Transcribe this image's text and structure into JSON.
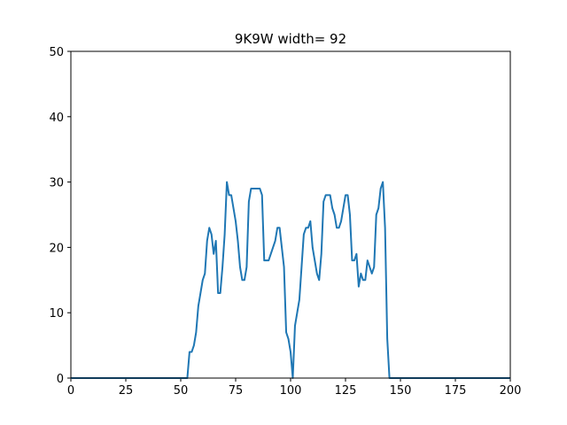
{
  "chart_data": {
    "type": "line",
    "title": "9K9W width= 92",
    "xlabel": "",
    "ylabel": "",
    "xlim": [
      0,
      200
    ],
    "ylim": [
      0,
      50
    ],
    "xticks": [
      "0",
      "25",
      "50",
      "75",
      "100",
      "125",
      "150",
      "175",
      "200"
    ],
    "yticks": [
      "0",
      "10",
      "20",
      "30",
      "40",
      "50"
    ],
    "grid": false,
    "line_color": "#1f77b4",
    "series": [
      {
        "x": [
          0,
          53,
          54,
          55,
          56,
          57,
          58,
          59,
          60,
          61,
          62,
          63,
          64,
          65,
          66,
          67,
          68,
          69,
          70,
          71,
          72,
          73,
          74,
          75,
          76,
          77,
          78,
          79,
          80,
          81,
          82,
          83,
          84,
          85,
          86,
          87,
          88,
          89,
          90,
          91,
          92,
          93,
          94,
          95,
          96,
          97,
          98,
          99,
          100,
          101,
          102,
          103,
          104,
          105,
          106,
          107,
          108,
          109,
          110,
          111,
          112,
          113,
          114,
          115,
          116,
          117,
          118,
          119,
          120,
          121,
          122,
          123,
          124,
          125,
          126,
          127,
          128,
          129,
          130,
          131,
          132,
          133,
          134,
          135,
          136,
          137,
          138,
          139,
          140,
          141,
          142,
          143,
          144,
          145,
          146,
          200
        ],
        "y": [
          0,
          0,
          4,
          4,
          5,
          7,
          11,
          13,
          15,
          16,
          21,
          23,
          22,
          19,
          21,
          13,
          13,
          17,
          22,
          30,
          28,
          28,
          26,
          24,
          21,
          17,
          15,
          15,
          17,
          27,
          29,
          29,
          29,
          29,
          29,
          28,
          18,
          18,
          18,
          19,
          20,
          21,
          23,
          23,
          20,
          17,
          7,
          6,
          4,
          0,
          8,
          10,
          12,
          17,
          22,
          23,
          23,
          24,
          20,
          18,
          16,
          15,
          19,
          27,
          28,
          28,
          28,
          26,
          25,
          23,
          23,
          24,
          26,
          28,
          28,
          25,
          18,
          18,
          19,
          14,
          16,
          15,
          15,
          18,
          17,
          16,
          17,
          25,
          26,
          29,
          30,
          23,
          6,
          0,
          0,
          0
        ]
      }
    ]
  }
}
